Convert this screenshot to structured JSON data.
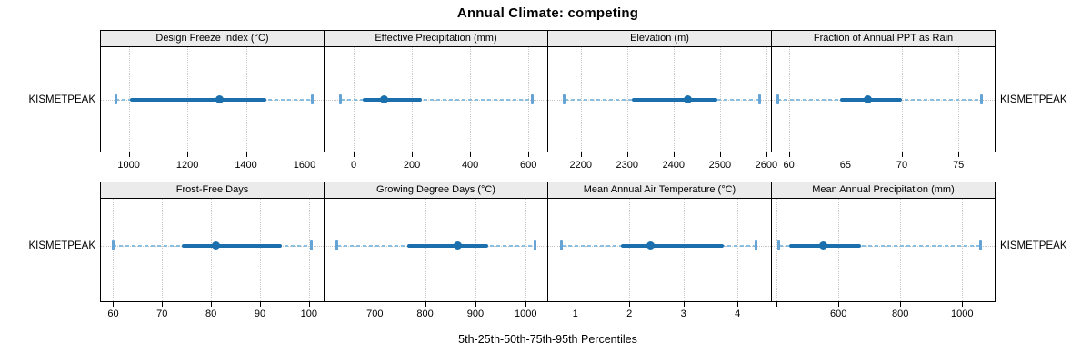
{
  "title": "Annual Climate: competing",
  "xlabel": "5th-25th-50th-75th-95th Percentiles",
  "row_label": "KISMETPEAK",
  "colors": {
    "median_dot": "#1b6fad",
    "iqr_line": "#1b6fad",
    "range_line": "#8abfe2",
    "range_cap": "#64a3d4",
    "gridline": "#c9c9c9",
    "strip_bg": "#ebebeb",
    "panel_border": "#000000"
  },
  "chart_data": {
    "type": "dotplot-percentiles",
    "group": "KISMETPEAK",
    "percentile_labels": [
      "5th",
      "25th",
      "50th",
      "75th",
      "95th"
    ],
    "legend_position": "none",
    "grid": "dotted-vertical-at-ticks",
    "panels": [
      {
        "row": 0,
        "col": 0,
        "title": "Design Freeze Index (°C)",
        "xlim": [
          905,
          1665
        ],
        "ticks": [
          {
            "v": 1000,
            "label": "1000"
          },
          {
            "v": 1200,
            "label": "1200"
          },
          {
            "v": 1400,
            "label": "1400"
          },
          {
            "v": 1600,
            "label": "1600"
          }
        ],
        "percentiles": {
          "p5": 955,
          "p25": 1005,
          "p50": 1310,
          "p75": 1470,
          "p95": 1625
        }
      },
      {
        "row": 0,
        "col": 1,
        "title": "Effective Precipitation (mm)",
        "xlim": [
          -100,
          665
        ],
        "ticks": [
          {
            "v": 0,
            "label": "0"
          },
          {
            "v": 200,
            "label": "200"
          },
          {
            "v": 400,
            "label": "400"
          },
          {
            "v": 600,
            "label": "600"
          }
        ],
        "percentiles": {
          "p5": -45,
          "p25": 30,
          "p50": 105,
          "p75": 235,
          "p95": 615
        }
      },
      {
        "row": 0,
        "col": 2,
        "title": "Elevation (m)",
        "xlim": [
          2130,
          2610
        ],
        "ticks": [
          {
            "v": 2200,
            "label": "2200"
          },
          {
            "v": 2300,
            "label": "2300"
          },
          {
            "v": 2400,
            "label": "2400"
          },
          {
            "v": 2500,
            "label": "2500"
          },
          {
            "v": 2600,
            "label": "2600"
          }
        ],
        "percentiles": {
          "p5": 2165,
          "p25": 2310,
          "p50": 2430,
          "p75": 2495,
          "p95": 2585
        }
      },
      {
        "row": 0,
        "col": 3,
        "title": "Fraction of Annual PPT as Rain",
        "xlim": [
          58.5,
          78.2
        ],
        "ticks": [
          {
            "v": 60,
            "label": "60"
          },
          {
            "v": 65,
            "label": "65"
          },
          {
            "v": 70,
            "label": "70"
          },
          {
            "v": 75,
            "label": "75"
          }
        ],
        "percentiles": {
          "p5": 59,
          "p25": 64.5,
          "p50": 67,
          "p75": 70,
          "p95": 77
        }
      },
      {
        "row": 1,
        "col": 0,
        "title": "Frost-Free Days",
        "xlim": [
          57.5,
          103
        ],
        "ticks": [
          {
            "v": 60,
            "label": "60"
          },
          {
            "v": 70,
            "label": "70"
          },
          {
            "v": 80,
            "label": "80"
          },
          {
            "v": 90,
            "label": "90"
          },
          {
            "v": 100,
            "label": "100"
          }
        ],
        "percentiles": {
          "p5": 60,
          "p25": 74,
          "p50": 81,
          "p75": 94.5,
          "p95": 100.5
        }
      },
      {
        "row": 1,
        "col": 1,
        "title": "Growing Degree Days (°C)",
        "xlim": [
          600,
          1043
        ],
        "ticks": [
          {
            "v": 700,
            "label": "700"
          },
          {
            "v": 800,
            "label": "800"
          },
          {
            "v": 900,
            "label": "900"
          },
          {
            "v": 1000,
            "label": "1000"
          }
        ],
        "percentiles": {
          "p5": 625,
          "p25": 765,
          "p50": 865,
          "p75": 925,
          "p95": 1018
        }
      },
      {
        "row": 1,
        "col": 2,
        "title": "Mean Annual Air Temperature (°C)",
        "xlim": [
          0.5,
          4.62
        ],
        "ticks": [
          {
            "v": 1,
            "label": "1"
          },
          {
            "v": 2,
            "label": "2"
          },
          {
            "v": 3,
            "label": "3"
          },
          {
            "v": 4,
            "label": "4"
          }
        ],
        "percentiles": {
          "p5": 0.75,
          "p25": 1.85,
          "p50": 2.4,
          "p75": 3.75,
          "p95": 4.35
        }
      },
      {
        "row": 1,
        "col": 3,
        "title": "Mean Annual Precipitation (mm)",
        "xlim": [
          385,
          1105
        ],
        "ticks": [
          {
            "v": 400,
            "label": ""
          },
          {
            "v": 600,
            "label": "600"
          },
          {
            "v": 800,
            "label": "800"
          },
          {
            "v": 1000,
            "label": "1000"
          }
        ],
        "percentiles": {
          "p5": 408,
          "p25": 440,
          "p50": 550,
          "p75": 672,
          "p95": 1058
        }
      }
    ]
  }
}
